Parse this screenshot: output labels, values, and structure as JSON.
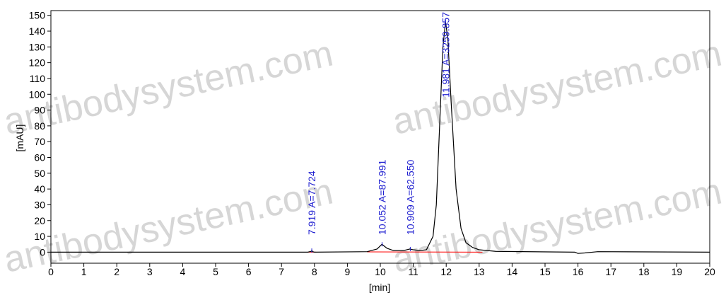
{
  "chart_data": {
    "type": "line",
    "watermark": "antibodysystem.com",
    "xlabel": "[min]",
    "ylabel": "[mAU]",
    "xlim": [
      0,
      20
    ],
    "xticks": [
      0,
      1,
      2,
      3,
      4,
      5,
      6,
      7,
      8,
      9,
      10,
      11,
      12,
      13,
      14,
      15,
      16,
      17,
      18,
      19,
      20
    ],
    "ylim": [
      -7,
      153
    ],
    "yticks": [
      0,
      10,
      20,
      30,
      40,
      50,
      60,
      70,
      80,
      90,
      100,
      110,
      120,
      130,
      140,
      150
    ],
    "series": [
      {
        "color": "#000000",
        "x": [
          0,
          7.8,
          7.9,
          7.92,
          7.95,
          8.0,
          9.6,
          9.9,
          10.05,
          10.2,
          10.4,
          10.7,
          10.9,
          11.0,
          11.2,
          11.4,
          11.6,
          11.7,
          11.8,
          11.9,
          11.98,
          12.05,
          12.15,
          12.3,
          12.45,
          12.6,
          12.8,
          13.0,
          13.5,
          15.9,
          16.0,
          16.2,
          16.6,
          20
        ],
        "values": [
          0,
          0,
          0.5,
          1,
          0.3,
          0,
          0.3,
          2,
          5,
          2.5,
          1,
          1,
          2,
          1.5,
          1,
          1.5,
          10,
          30,
          80,
          130,
          146,
          135,
          95,
          40,
          15,
          6,
          3,
          1.5,
          0.5,
          0,
          -0.8,
          -0.5,
          0.3,
          0
        ]
      }
    ],
    "baseline_color": "#ff0000",
    "baselines": [
      {
        "x": [
          7.8,
          8.05
        ],
        "values": [
          0,
          0
        ]
      },
      {
        "x": [
          9.6,
          13.1
        ],
        "values": [
          0.2,
          0
        ]
      }
    ],
    "annotations": [
      {
        "x": 7.919,
        "label": "7.919 A=7.724"
      },
      {
        "x": 10.052,
        "label": "10.052 A=87.991"
      },
      {
        "x": 10.909,
        "label": "10.909 A=62.550"
      },
      {
        "x": 11.981,
        "label": "11.981 A=3259.857"
      }
    ]
  }
}
